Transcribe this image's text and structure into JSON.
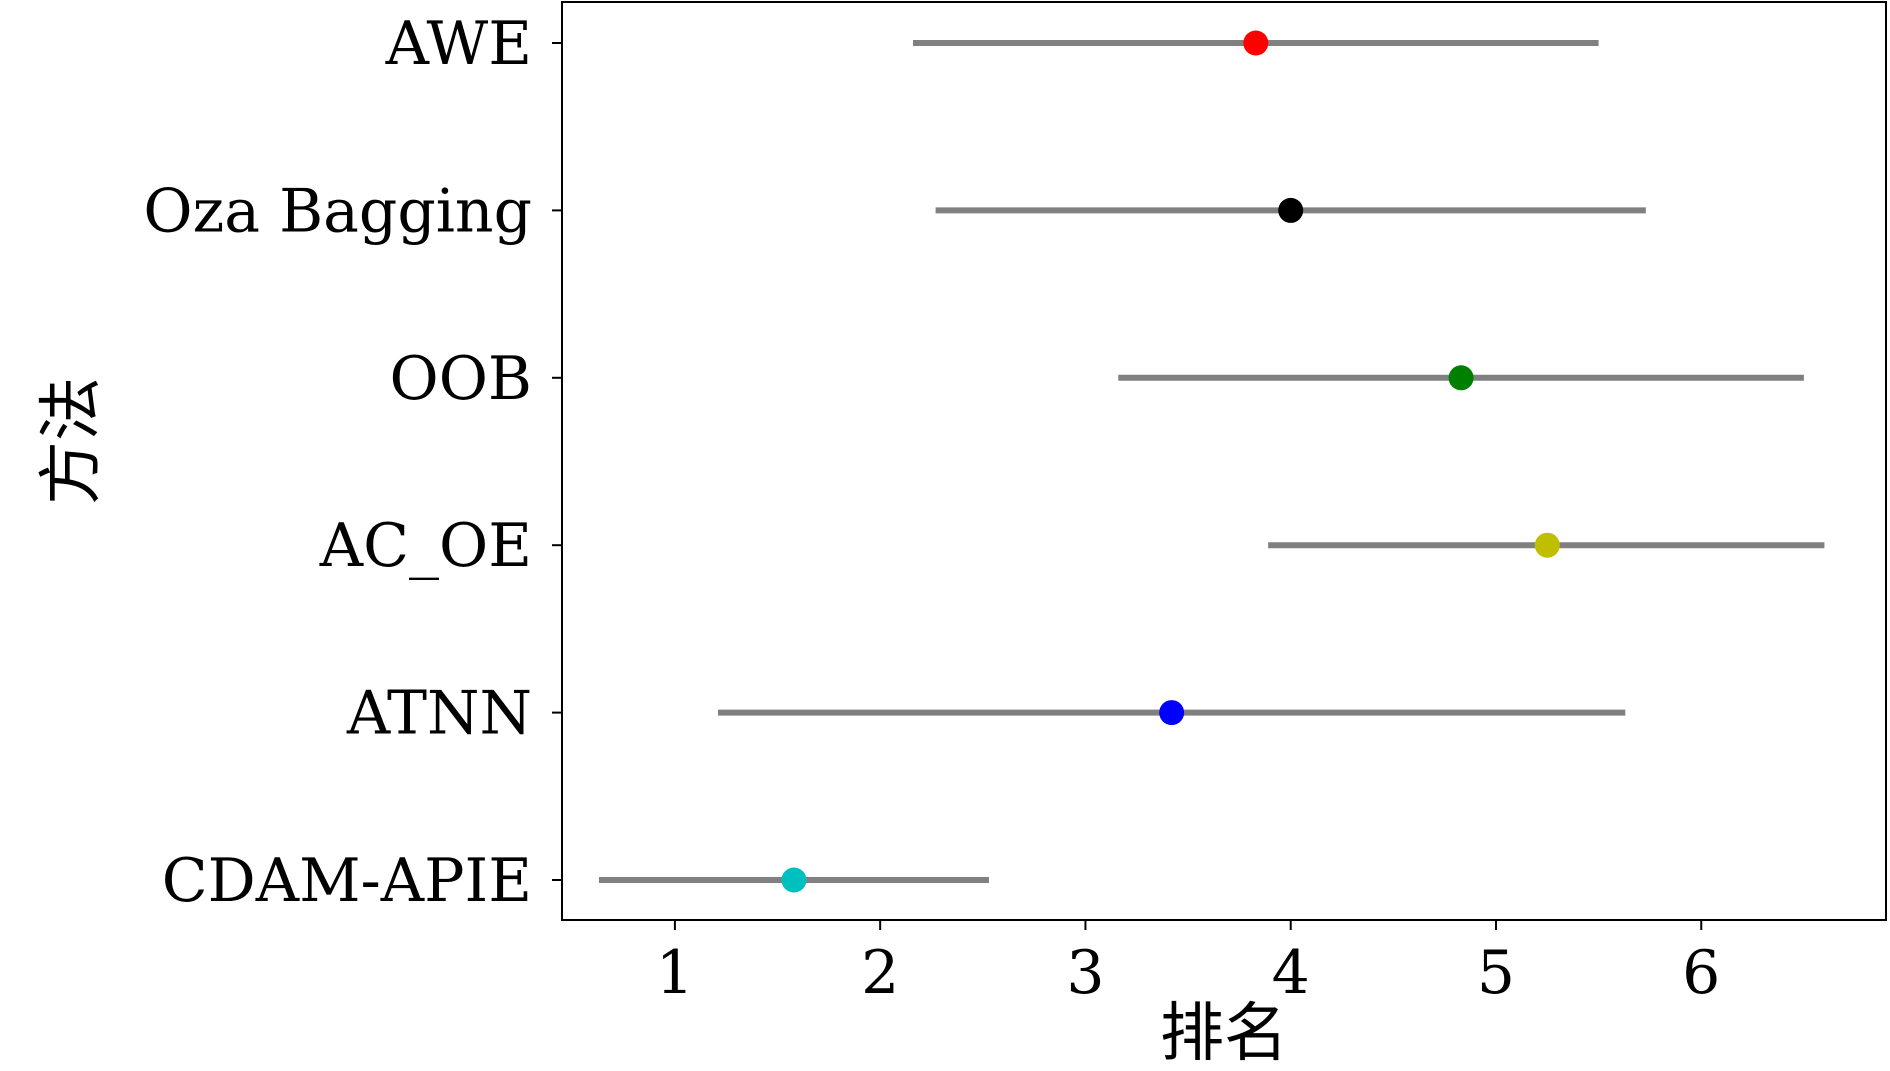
{
  "chart_data": {
    "type": "scatter",
    "subtype": "dot-with-interval",
    "title": "",
    "xlabel": "排名",
    "ylabel": "方法",
    "xlim": [
      0.45,
      6.9
    ],
    "xticks": [
      1,
      2,
      3,
      4,
      5,
      6
    ],
    "categories": [
      "AWE",
      "Oza Bagging",
      "OOB",
      "AC_OE",
      "ATNN",
      "CDAM-APIE"
    ],
    "points": [
      {
        "method": "AWE",
        "rank": 3.83,
        "low": 2.16,
        "high": 5.5,
        "color": "#ff0000"
      },
      {
        "method": "Oza Bagging",
        "rank": 4.0,
        "low": 2.27,
        "high": 5.73,
        "color": "#000000"
      },
      {
        "method": "OOB",
        "rank": 4.83,
        "low": 3.16,
        "high": 6.5,
        "color": "#008000"
      },
      {
        "method": "AC_OE",
        "rank": 5.25,
        "low": 3.89,
        "high": 6.6,
        "color": "#bfbf00"
      },
      {
        "method": "ATNN",
        "rank": 3.42,
        "low": 1.21,
        "high": 5.63,
        "color": "#0000ff"
      },
      {
        "method": "CDAM-APIE",
        "rank": 1.58,
        "low": 0.63,
        "high": 2.53,
        "color": "#00bfbf"
      }
    ],
    "interval_color": "#808080",
    "grid": false,
    "legend": "none"
  }
}
